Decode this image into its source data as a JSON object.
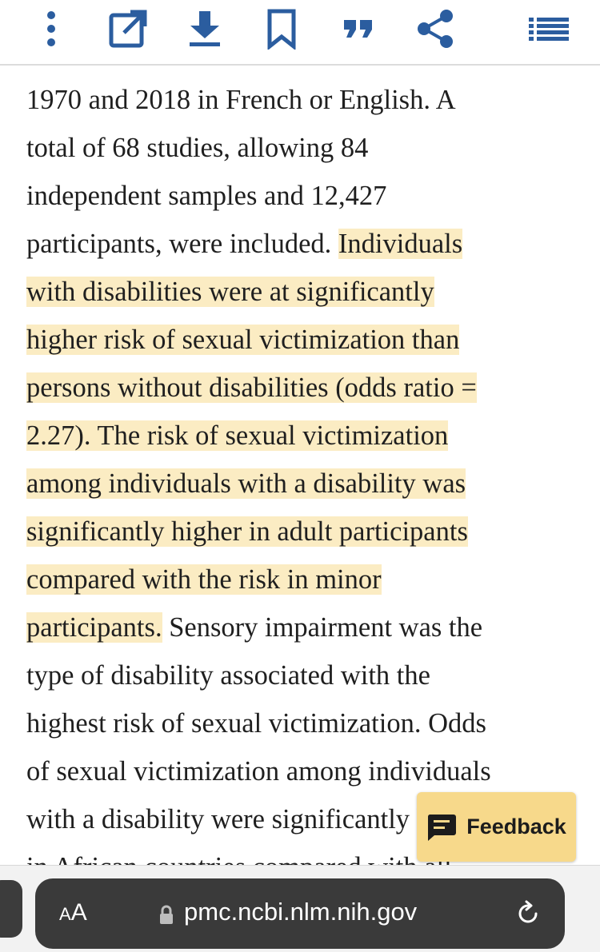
{
  "colors": {
    "accent": "#2b5d9f",
    "highlight": "#fbecc3",
    "feedback_bg": "#f7d98b",
    "url_bar_bg": "#3a3a3a"
  },
  "toolbar": {
    "icons": [
      "more-vertical-icon",
      "open-external-icon",
      "download-icon",
      "bookmark-icon",
      "cite-quote-icon",
      "share-icon",
      "outline-list-icon"
    ]
  },
  "article": {
    "lines": [
      {
        "pre": "1970 and 2018 in French or English. A"
      },
      {
        "pre": "total of 68 studies, allowing 84"
      },
      {
        "pre": "independent samples and 12,427"
      },
      {
        "pre": "participants, were included. ",
        "hl": "Individuals"
      },
      {
        "hl": "with disabilities were at significantly"
      },
      {
        "hl": "higher risk of sexual victimization than"
      },
      {
        "hl": "persons without disabilities (odds ratio ="
      },
      {
        "hl": "2.27). The risk of sexual victimization"
      },
      {
        "hl": "among individuals with a disability was"
      },
      {
        "hl": "significantly higher in adult participants"
      },
      {
        "hl": "compared with the risk in minor"
      },
      {
        "hl": "participants.",
        "post": " Sensory impairment was the"
      },
      {
        "pre": "type of disability associated with the"
      },
      {
        "pre": "highest risk of sexual victimization. Odds"
      },
      {
        "pre": "of sexual victimization among individuals"
      },
      {
        "pre": "with a disability were significantly higher"
      },
      {
        "pre": "in African countries compared with all"
      }
    ]
  },
  "feedback": {
    "label": "Feedback",
    "icon": "feedback-chat-icon"
  },
  "browser": {
    "text_size_label_big": "A",
    "text_size_label_small": "A",
    "url": "pmc.ncbi.nlm.nih.gov",
    "lock_icon": "lock-icon",
    "reload_icon": "reload-icon"
  }
}
